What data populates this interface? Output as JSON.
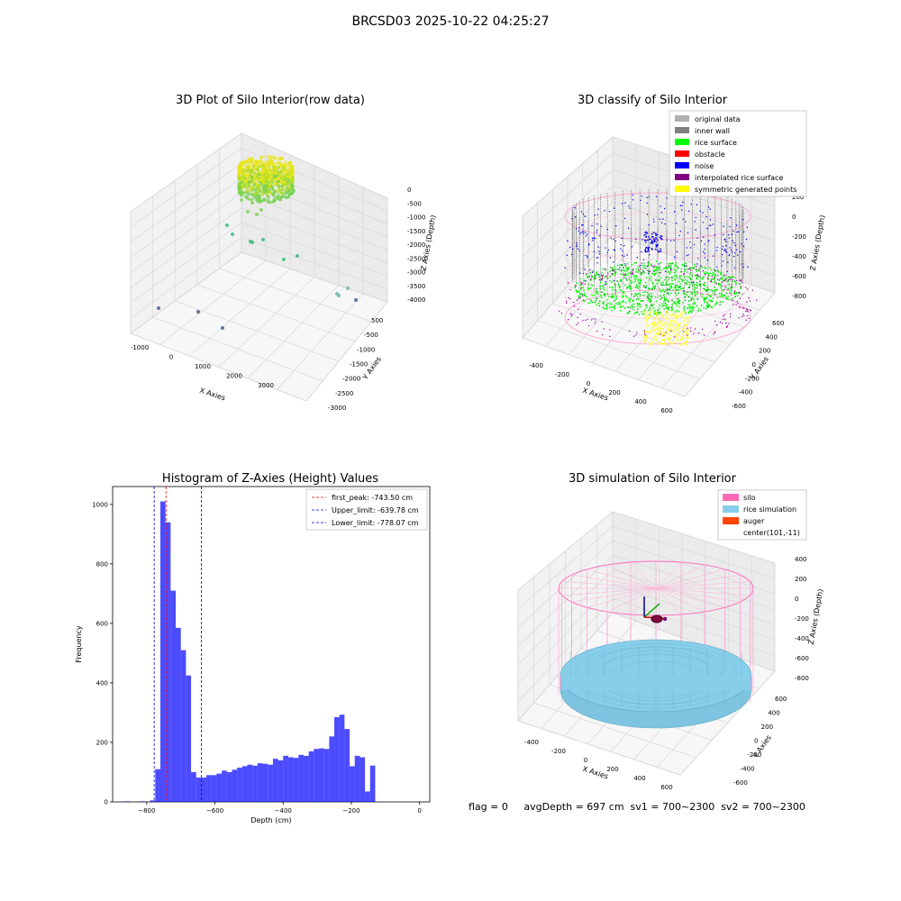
{
  "figure": {
    "suptitle": "BRCSD03 2025-10-22 04:25:27",
    "footer": "flag = 0     avgDepth = 697 cm  sv1 = 700~2300  sv2 = 700~2300"
  },
  "chart_data": [
    {
      "type": "scatter",
      "projection": "3d",
      "title": "3D Plot of Silo Interior(row data)",
      "xlabel": "X Axies",
      "ylabel": "Y Axies",
      "zlabel": "Z Axies (Depth)",
      "x_ticks": [
        "-1000",
        "0",
        "1000",
        "2000",
        "3000"
      ],
      "y_ticks": [
        "500",
        "-500",
        "-1000",
        "-1500",
        "-2000",
        "-2500",
        "-3000"
      ],
      "z_ticks": [
        "0",
        "-500",
        "-1000",
        "-1500",
        "-2000",
        "-2500",
        "-3000",
        "-3500",
        "-4000"
      ],
      "colormap": "viridis",
      "grid": true
    },
    {
      "type": "scatter",
      "projection": "3d",
      "title": "3D classify of Silo Interior",
      "xlabel": "X Axies",
      "ylabel": "Y Axies",
      "zlabel": "Z Axies (Depth)",
      "x_ticks": [
        "-400",
        "-200",
        "0",
        "200",
        "400",
        "600"
      ],
      "y_ticks": [
        "600",
        "400",
        "200",
        "0",
        "-200",
        "-400",
        "-600"
      ],
      "z_ticks": [
        "200",
        "0",
        "-200",
        "-400",
        "-600",
        "-800"
      ],
      "legend_position": "top-right",
      "legend": [
        {
          "label": "original data",
          "color": "#b0b0b0"
        },
        {
          "label": "inner wall",
          "color": "#808080"
        },
        {
          "label": "rice surface",
          "color": "#00ff00"
        },
        {
          "label": "obstacle",
          "color": "#ff0000"
        },
        {
          "label": "noise",
          "color": "#0000ff"
        },
        {
          "label": "interpolated rice surface",
          "color": "#800080"
        },
        {
          "label": "symmetric generated points",
          "color": "#ffff00"
        }
      ],
      "grid": true
    },
    {
      "type": "bar",
      "title": "Histogram of Z-Axies (Height) Values",
      "xlabel": "Depth (cm)",
      "ylabel": "Frequency",
      "xlim": [
        -900,
        30
      ],
      "ylim": [
        0,
        1060
      ],
      "x_ticks": [
        -800,
        -600,
        -400,
        -200,
        0
      ],
      "y_ticks": [
        0,
        200,
        400,
        600,
        800,
        1000
      ],
      "bar_color": "#0000ff",
      "bins": [
        {
          "x0": -865,
          "x1": -850,
          "count": 2
        },
        {
          "x0": -850,
          "x1": -835,
          "count": 0
        },
        {
          "x0": -835,
          "x1": -820,
          "count": 0
        },
        {
          "x0": -820,
          "x1": -805,
          "count": 2
        },
        {
          "x0": -805,
          "x1": -790,
          "count": 0
        },
        {
          "x0": -790,
          "x1": -775,
          "count": 5
        },
        {
          "x0": -775,
          "x1": -760,
          "count": 110
        },
        {
          "x0": -760,
          "x1": -745,
          "count": 1010
        },
        {
          "x0": -745,
          "x1": -730,
          "count": 940
        },
        {
          "x0": -730,
          "x1": -715,
          "count": 710
        },
        {
          "x0": -715,
          "x1": -700,
          "count": 585
        },
        {
          "x0": -700,
          "x1": -685,
          "count": 510
        },
        {
          "x0": -685,
          "x1": -670,
          "count": 425
        },
        {
          "x0": -670,
          "x1": -655,
          "count": 100
        },
        {
          "x0": -655,
          "x1": -640,
          "count": 82
        },
        {
          "x0": -640,
          "x1": -625,
          "count": 82
        },
        {
          "x0": -625,
          "x1": -610,
          "count": 90
        },
        {
          "x0": -610,
          "x1": -595,
          "count": 90
        },
        {
          "x0": -595,
          "x1": -580,
          "count": 95
        },
        {
          "x0": -580,
          "x1": -565,
          "count": 105
        },
        {
          "x0": -565,
          "x1": -550,
          "count": 100
        },
        {
          "x0": -550,
          "x1": -535,
          "count": 108
        },
        {
          "x0": -535,
          "x1": -520,
          "count": 115
        },
        {
          "x0": -520,
          "x1": -505,
          "count": 120
        },
        {
          "x0": -505,
          "x1": -490,
          "count": 125
        },
        {
          "x0": -490,
          "x1": -475,
          "count": 122
        },
        {
          "x0": -475,
          "x1": -460,
          "count": 130
        },
        {
          "x0": -460,
          "x1": -445,
          "count": 128
        },
        {
          "x0": -445,
          "x1": -430,
          "count": 125
        },
        {
          "x0": -430,
          "x1": -415,
          "count": 145
        },
        {
          "x0": -415,
          "x1": -400,
          "count": 140
        },
        {
          "x0": -400,
          "x1": -385,
          "count": 155
        },
        {
          "x0": -385,
          "x1": -370,
          "count": 150
        },
        {
          "x0": -370,
          "x1": -355,
          "count": 148
        },
        {
          "x0": -355,
          "x1": -340,
          "count": 158
        },
        {
          "x0": -340,
          "x1": -325,
          "count": 155
        },
        {
          "x0": -325,
          "x1": -310,
          "count": 170
        },
        {
          "x0": -310,
          "x1": -295,
          "count": 178
        },
        {
          "x0": -295,
          "x1": -280,
          "count": 180
        },
        {
          "x0": -280,
          "x1": -265,
          "count": 178
        },
        {
          "x0": -265,
          "x1": -250,
          "count": 220
        },
        {
          "x0": -250,
          "x1": -235,
          "count": 285
        },
        {
          "x0": -235,
          "x1": -220,
          "count": 293
        },
        {
          "x0": -220,
          "x1": -205,
          "count": 245
        },
        {
          "x0": -205,
          "x1": -190,
          "count": 120
        },
        {
          "x0": -190,
          "x1": -175,
          "count": 155
        },
        {
          "x0": -175,
          "x1": -160,
          "count": 150
        },
        {
          "x0": -160,
          "x1": -145,
          "count": 35
        },
        {
          "x0": -145,
          "x1": -130,
          "count": 122
        }
      ],
      "vlines": [
        {
          "label": "first_peak: -743.50 cm",
          "x": -743.5,
          "color": "#ff0000"
        },
        {
          "label": "Upper_limit: -639.78 cm",
          "x": -639.78,
          "color": "#0000cc"
        },
        {
          "label": "Lower_limit: -778.07 cm",
          "x": -778.07,
          "color": "#0000cc"
        }
      ],
      "legend_position": "top-right"
    },
    {
      "type": "surface",
      "projection": "3d",
      "title": "3D simulation of Silo Interior",
      "xlabel": "X Axies",
      "ylabel": "Y Axies",
      "zlabel": "Z Axies (Depth)",
      "x_ticks": [
        "-400",
        "-200",
        "0",
        "200",
        "400",
        "600"
      ],
      "y_ticks": [
        "600",
        "400",
        "200",
        "0",
        "-200",
        "-400",
        "-600"
      ],
      "z_ticks": [
        "400",
        "200",
        "0",
        "-200",
        "-400",
        "-600",
        "-800"
      ],
      "legend_position": "top-right",
      "legend": [
        {
          "label": "silo",
          "color": "#ff69b4"
        },
        {
          "label": "rice simulation",
          "color": "#87ceeb"
        },
        {
          "label": "auger",
          "color": "#ff4500"
        },
        {
          "label": "center(101,-11)",
          "color": "none"
        }
      ],
      "grid": true
    }
  ]
}
